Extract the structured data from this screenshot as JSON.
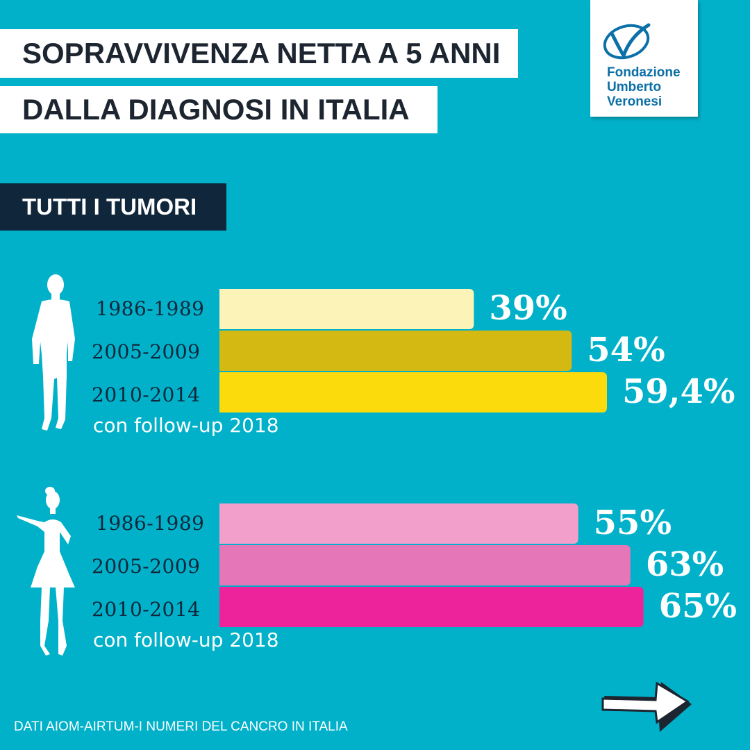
{
  "title_line1": "SOPRAVVIVENZA NETTA A 5 ANNI",
  "title_line2": "DALLA DIAGNOSI IN ITALIA",
  "logo": {
    "line1": "Fondazione",
    "line2": "Umberto",
    "line3": "Veronesi"
  },
  "section_label": "TUTTI I TUMORI",
  "followup_note": "con follow-up 2018",
  "source": "DATI AIOM-AIRTUM-I NUMERI DEL CANCRO IN ITALIA",
  "icons": {
    "men": "man-silhouette-icon",
    "women": "woman-silhouette-icon",
    "next": "arrow-right-icon"
  },
  "chart_data": [
    {
      "type": "bar",
      "group": "men",
      "categories": [
        "1986-1989",
        "2005-2009",
        "2010-2014"
      ],
      "values": [
        39,
        54,
        59.4
      ],
      "labels": [
        "39%",
        "54%",
        "59,4%"
      ],
      "colors": [
        "#fcf3b8",
        "#d4b913",
        "#fcdb0d"
      ]
    },
    {
      "type": "bar",
      "group": "women",
      "categories": [
        "1986-1989",
        "2005-2009",
        "2010-2014"
      ],
      "values": [
        55,
        63,
        65
      ],
      "labels": [
        "55%",
        "63%",
        "65%"
      ],
      "colors": [
        "#f29fcb",
        "#e577b9",
        "#ec239a"
      ]
    }
  ]
}
